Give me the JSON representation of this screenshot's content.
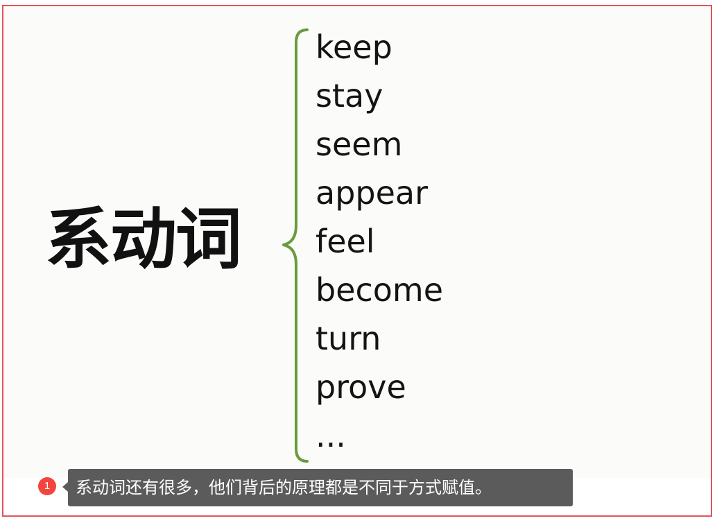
{
  "slide": {
    "heading": "系动词",
    "words": [
      "keep",
      "stay",
      "seem",
      "appear",
      "feel",
      "become",
      "turn",
      "prove",
      "..."
    ],
    "brace_color": "#6a9b3c"
  },
  "annotation": {
    "badge_number": "1",
    "text": "系动词还有很多，他们背后的原理都是不同于方式赋值。",
    "badge_color": "#f1453d",
    "box_color": "#5b5b5b"
  },
  "frame_color": "#e2545a"
}
